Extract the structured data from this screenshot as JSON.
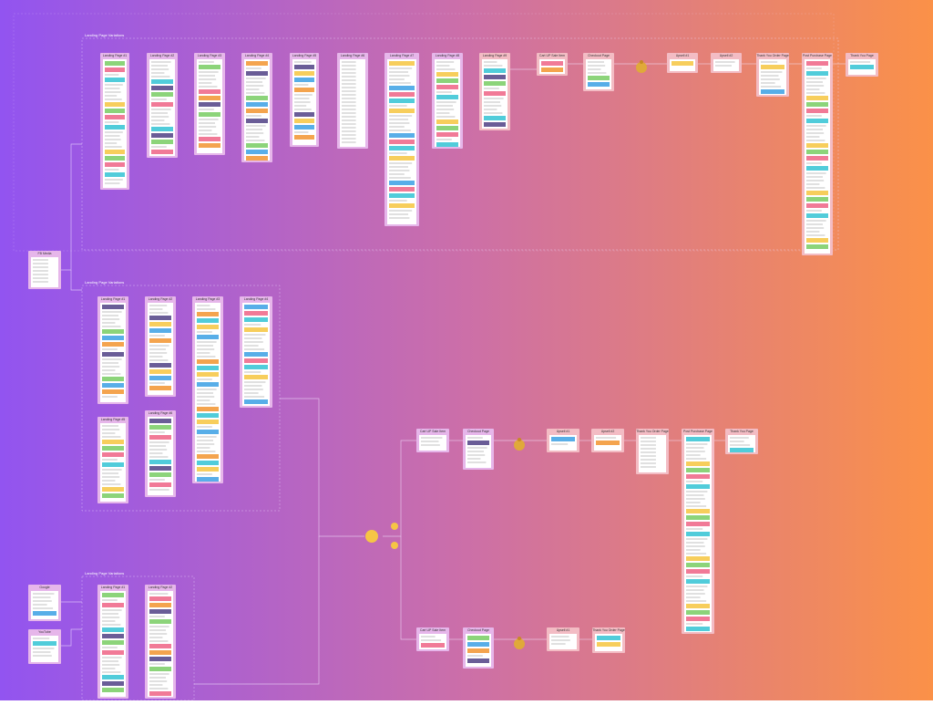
{
  "groups": [
    {
      "title": "Landing Page Variations"
    },
    {
      "title": "Landing Page Variations"
    },
    {
      "title": "Landing Page Variations"
    }
  ],
  "nodes": [
    {
      "label": "Landing Page #1"
    },
    {
      "label": "Landing Page #2"
    },
    {
      "label": "Landing Page #3"
    },
    {
      "label": "Landing Page #4"
    },
    {
      "label": "Landing Page #5"
    },
    {
      "label": "Landing Page #6"
    },
    {
      "label": "Landing Page #7"
    },
    {
      "label": "Landing Page #8"
    },
    {
      "label": "Landing Page #9"
    },
    {
      "label": "Cart UP Sale Item"
    },
    {
      "label": "Checkout Page"
    },
    {
      "label": "Upsell #1"
    },
    {
      "label": "Upsell #2"
    },
    {
      "label": "Thank You Order Page"
    },
    {
      "label": "Post Purchase Page"
    },
    {
      "label": "Thank You Page"
    },
    {
      "label": "FB Media"
    },
    {
      "label": "Landing Page #1"
    },
    {
      "label": "Landing Page #2"
    },
    {
      "label": "Landing Page #3"
    },
    {
      "label": "Landing Page #4"
    },
    {
      "label": "Landing Page #5"
    },
    {
      "label": "Landing Page #6"
    },
    {
      "label": "Cart UP Sale Item"
    },
    {
      "label": "Checkout Page"
    },
    {
      "label": "Upsell #1"
    },
    {
      "label": "Upsell #2"
    },
    {
      "label": "Thank You Order Page"
    },
    {
      "label": "Post Purchase Page"
    },
    {
      "label": "Thank You Page"
    },
    {
      "label": "Cart UP Sale Item"
    },
    {
      "label": "Checkout Page"
    },
    {
      "label": "Upsell #1"
    },
    {
      "label": "Thank You Order Page"
    },
    {
      "label": "Google"
    },
    {
      "label": "YouTube"
    },
    {
      "label": "Landing Page #1"
    },
    {
      "label": "Landing Page #2"
    }
  ]
}
